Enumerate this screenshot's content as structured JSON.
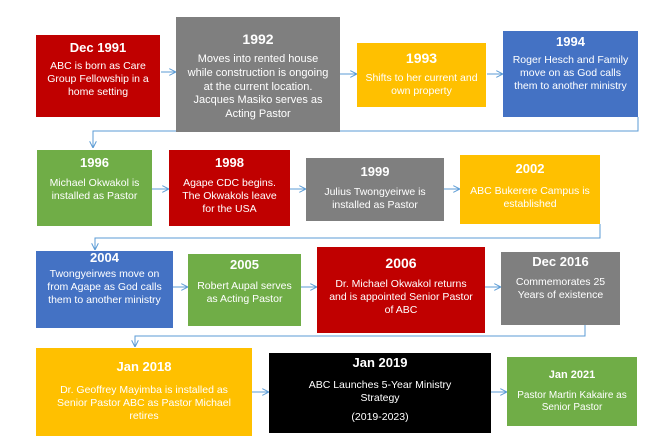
{
  "timeline": {
    "events": [
      {
        "year": "Dec 1991",
        "text": "ABC is born as Care Group Fellowship in a home setting",
        "color": "#c00000"
      },
      {
        "year": "1992",
        "text": "Moves into rented house while construction is ongoing at the current location. Jacques Masiko serves as Acting Pastor",
        "color": "#7f7f7f"
      },
      {
        "year": "1993",
        "text": "Shifts to her current and own property",
        "color": "#ffc000"
      },
      {
        "year": "1994",
        "text": "Roger Hesch and Family move on as God calls them to another ministry",
        "color": "#4472c4"
      },
      {
        "year": "1996",
        "text": "Michael Okwakol is installed as Pastor",
        "color": "#70ad47"
      },
      {
        "year": "1998",
        "text": "Agape CDC begins. The Okwakols leave for the USA",
        "color": "#c00000"
      },
      {
        "year": "1999",
        "text": "Julius Twongyeirwe is installed as Pastor",
        "color": "#7f7f7f"
      },
      {
        "year": "2002",
        "text": "ABC Bukerere Campus is established",
        "color": "#ffc000"
      },
      {
        "year": "2004",
        "text": "Twongyeirwes move on from Agape as God calls them to another ministry",
        "color": "#4472c4"
      },
      {
        "year": "2005",
        "text": "Robert Aupal serves as Acting Pastor",
        "color": "#70ad47"
      },
      {
        "year": "2006",
        "text": "Dr. Michael Okwakol returns and is appointed Senior Pastor of ABC",
        "color": "#c00000"
      },
      {
        "year": "Dec 2016",
        "text": "Commemorates 25 Years of existence",
        "color": "#7f7f7f"
      },
      {
        "year": "Jan 2018",
        "text": "Dr. Geoffrey Mayimba is installed as Senior Pastor ABC as Pastor Michael retires",
        "color": "#ffc000"
      },
      {
        "year": "Jan 2019",
        "text": "ABC Launches 5-Year Ministry Strategy",
        "text2": "(2019-2023)",
        "color": "#000000"
      },
      {
        "year": "Jan 2021",
        "text": "Pastor Martin Kakaire as Senior Pastor",
        "color": "#70ad47"
      }
    ],
    "connector_color": "#5b9bd5"
  }
}
